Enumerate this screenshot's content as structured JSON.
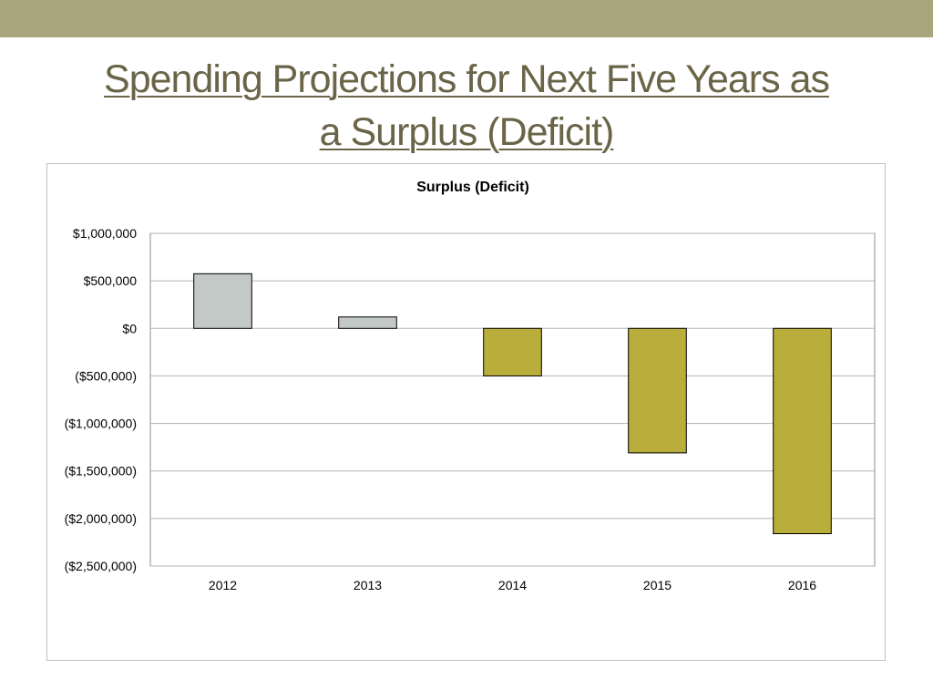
{
  "slide": {
    "title_line1": "Spending Projections for Next Five Years as",
    "title_line2": "a Surplus (Deficit)"
  },
  "colors": {
    "band": "#a9a57c",
    "title": "#6a6548",
    "surplus_bar": "#c3c9c7",
    "deficit_bar": "#b9ad3b"
  },
  "chart_data": {
    "type": "bar",
    "title": "Surplus (Deficit)",
    "xlabel": "",
    "ylabel": "",
    "categories": [
      "2012",
      "2013",
      "2014",
      "2015",
      "2016"
    ],
    "values": [
      575000,
      120000,
      -500000,
      -1310000,
      -2160000
    ],
    "ylim": [
      -2500000,
      1000000
    ],
    "yticks": [
      1000000,
      500000,
      0,
      -500000,
      -1000000,
      -1500000,
      -2000000,
      -2500000
    ],
    "ytick_labels": [
      "$1,000,000",
      "$500,000",
      "$0",
      "($500,000)",
      "($1,000,000)",
      "($1,500,000)",
      "($2,000,000)",
      "($2,500,000)"
    ],
    "grid": true,
    "legend": "none"
  }
}
